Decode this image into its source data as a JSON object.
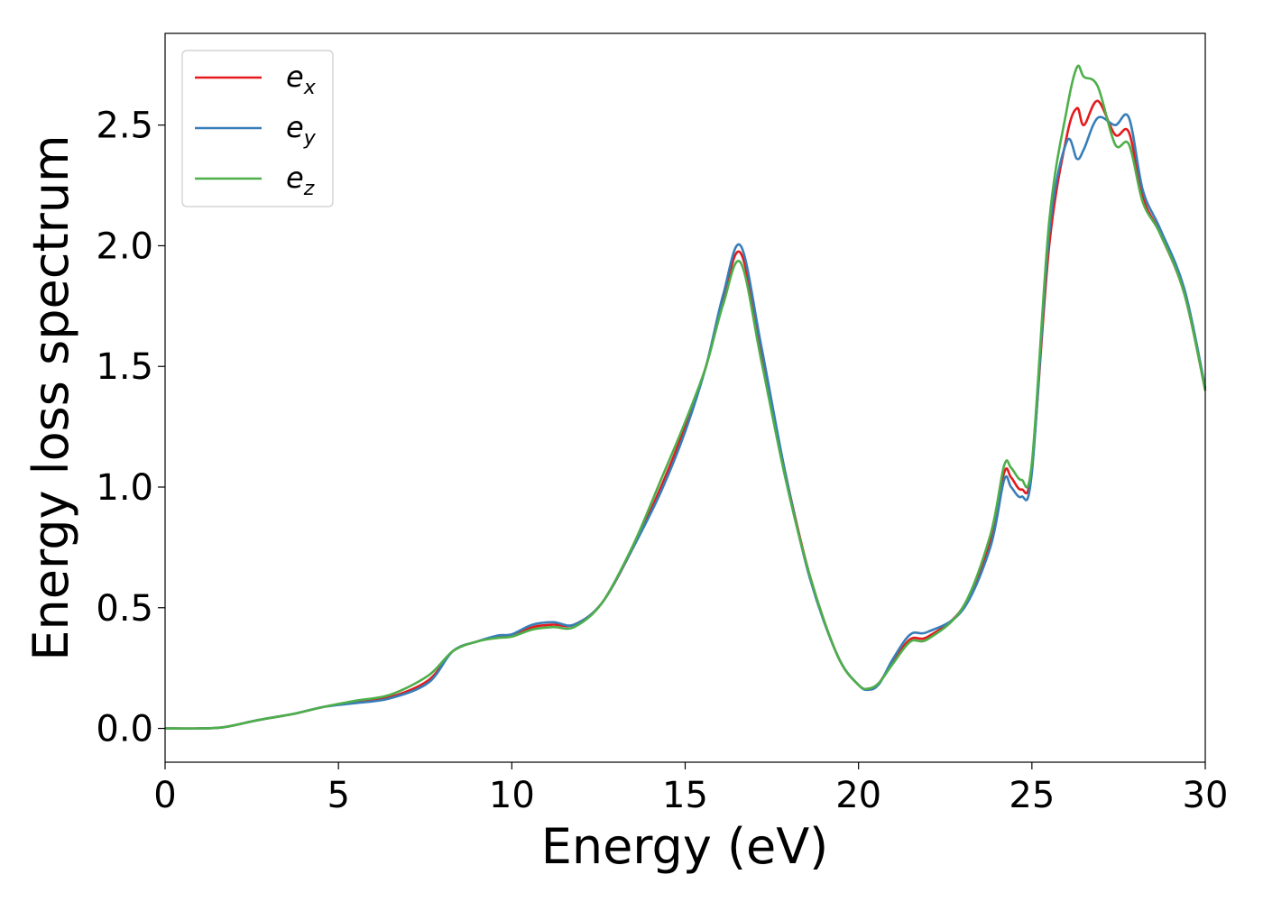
{
  "chart_data": {
    "type": "line",
    "xlabel": "Energy (eV)",
    "ylabel": "Energy loss spectrum",
    "xlim": [
      0,
      30
    ],
    "ylim": [
      -0.14,
      2.88
    ],
    "x_ticks": [
      "0",
      "5",
      "10",
      "15",
      "20",
      "25",
      "30"
    ],
    "y_ticks": [
      "0.0",
      "0.5",
      "1.0",
      "1.5",
      "2.0",
      "2.5"
    ],
    "x_tick_values": [
      0,
      5,
      10,
      15,
      20,
      25,
      30
    ],
    "y_tick_values": [
      0.0,
      0.5,
      1.0,
      1.5,
      2.0,
      2.5
    ],
    "grid": false,
    "legend_position": "top-left",
    "x": [
      0,
      1,
      1.7,
      2.7,
      3.7,
      4.6,
      5.5,
      6.5,
      7.6,
      8.3,
      9.0,
      9.6,
      10.0,
      10.6,
      11.2,
      11.8,
      12.6,
      13.5,
      14.3,
      15.0,
      15.6,
      16.1,
      16.6,
      17.2,
      17.9,
      18.6,
      19.4,
      20.0,
      20.3,
      20.6,
      21.0,
      21.5,
      22.0,
      23.0,
      23.8,
      24.2,
      24.4,
      24.7,
      25.0,
      25.5,
      26.0,
      26.3,
      26.5,
      26.9,
      27.4,
      27.8,
      28.2,
      28.7,
      29.4,
      30.0
    ],
    "series": [
      {
        "name": "e_x",
        "label_base": "e",
        "label_sub": "x",
        "color": "#e41a1c",
        "values": [
          0,
          0,
          0.005,
          0.035,
          0.06,
          0.09,
          0.11,
          0.13,
          0.2,
          0.32,
          0.36,
          0.38,
          0.385,
          0.42,
          0.43,
          0.43,
          0.52,
          0.75,
          1.0,
          1.25,
          1.5,
          1.78,
          1.97,
          1.55,
          1.05,
          0.63,
          0.3,
          0.18,
          0.165,
          0.19,
          0.28,
          0.37,
          0.38,
          0.5,
          0.78,
          1.06,
          1.04,
          0.99,
          1.08,
          2.0,
          2.45,
          2.57,
          2.5,
          2.6,
          2.46,
          2.47,
          2.2,
          2.05,
          1.8,
          1.4
        ]
      },
      {
        "name": "e_y",
        "label_base": "e",
        "label_sub": "y",
        "color": "#377eb8",
        "values": [
          0,
          0,
          0.005,
          0.035,
          0.06,
          0.09,
          0.105,
          0.125,
          0.19,
          0.32,
          0.36,
          0.385,
          0.39,
          0.43,
          0.44,
          0.43,
          0.52,
          0.75,
          0.98,
          1.23,
          1.5,
          1.8,
          2.0,
          1.58,
          1.05,
          0.62,
          0.3,
          0.18,
          0.16,
          0.185,
          0.29,
          0.39,
          0.4,
          0.49,
          0.75,
          1.03,
          1.0,
          0.96,
          1.06,
          2.05,
          2.43,
          2.36,
          2.4,
          2.53,
          2.5,
          2.53,
          2.23,
          2.07,
          1.82,
          1.41
        ]
      },
      {
        "name": "e_z",
        "label_base": "e",
        "label_sub": "z",
        "color": "#4daf4a",
        "values": [
          0,
          0,
          0.005,
          0.035,
          0.06,
          0.09,
          0.115,
          0.14,
          0.22,
          0.32,
          0.36,
          0.375,
          0.38,
          0.41,
          0.42,
          0.42,
          0.52,
          0.76,
          1.03,
          1.27,
          1.5,
          1.76,
          1.93,
          1.52,
          1.03,
          0.63,
          0.3,
          0.18,
          0.165,
          0.19,
          0.27,
          0.36,
          0.37,
          0.5,
          0.8,
          1.09,
          1.08,
          1.03,
          1.1,
          2.1,
          2.56,
          2.74,
          2.7,
          2.66,
          2.42,
          2.42,
          2.18,
          2.05,
          1.8,
          1.4
        ]
      }
    ]
  }
}
